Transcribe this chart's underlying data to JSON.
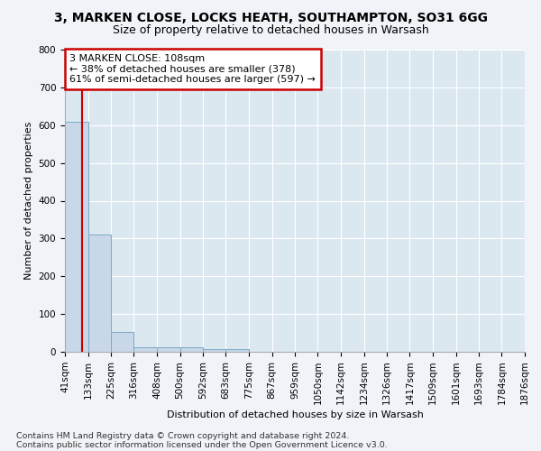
{
  "title1": "3, MARKEN CLOSE, LOCKS HEATH, SOUTHAMPTON, SO31 6GG",
  "title2": "Size of property relative to detached houses in Warsash",
  "xlabel": "Distribution of detached houses by size in Warsash",
  "ylabel": "Number of detached properties",
  "footnote1": "Contains HM Land Registry data © Crown copyright and database right 2024.",
  "footnote2": "Contains public sector information licensed under the Open Government Licence v3.0.",
  "bin_edges": [
    41,
    133,
    225,
    316,
    408,
    500,
    592,
    683,
    775,
    867,
    959,
    1050,
    1142,
    1234,
    1326,
    1417,
    1509,
    1601,
    1693,
    1784,
    1876
  ],
  "counts": [
    608,
    310,
    52,
    12,
    13,
    12,
    6,
    8,
    0,
    0,
    0,
    0,
    0,
    0,
    0,
    0,
    0,
    0,
    0,
    0
  ],
  "bar_color": "#c8d8e8",
  "bar_edge_color": "#7aaac8",
  "property_size": 108,
  "annotation_line1": "3 MARKEN CLOSE: 108sqm",
  "annotation_line2": "← 38% of detached houses are smaller (378)",
  "annotation_line3": "61% of semi-detached houses are larger (597) →",
  "annotation_box_color": "#ffffff",
  "annotation_box_edge": "#cc0000",
  "red_line_color": "#cc0000",
  "plot_bg_color": "#dce8f0",
  "fig_bg_color": "#f0f4f8",
  "ylim": [
    0,
    800
  ],
  "yticks": [
    0,
    100,
    200,
    300,
    400,
    500,
    600,
    700,
    800
  ],
  "title1_fontsize": 10,
  "title2_fontsize": 9,
  "xlabel_fontsize": 8,
  "ylabel_fontsize": 8,
  "tick_fontsize": 7.5,
  "footnote_fontsize": 6.8
}
